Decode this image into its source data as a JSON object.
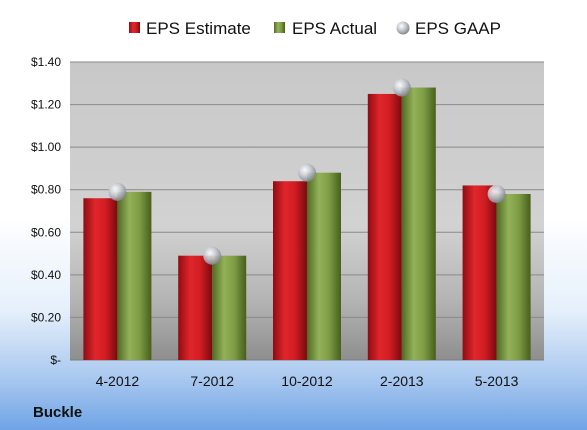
{
  "chart_data": {
    "type": "bar",
    "categories": [
      "4-2012",
      "7-2012",
      "10-2012",
      "2-2013",
      "5-2013"
    ],
    "series": [
      {
        "name": "EPS Estimate",
        "kind": "bar",
        "color": "#c8161d",
        "values": [
          0.76,
          0.49,
          0.84,
          1.25,
          0.82
        ]
      },
      {
        "name": "EPS Actual",
        "kind": "bar",
        "color": "#77933c",
        "values": [
          0.79,
          0.49,
          0.88,
          1.28,
          0.78
        ]
      },
      {
        "name": "EPS GAAP",
        "kind": "marker",
        "color": "#b8bcc4",
        "values": [
          0.79,
          0.49,
          0.88,
          1.28,
          0.78
        ]
      }
    ],
    "ylim": [
      0,
      1.4
    ],
    "yticks": [
      {
        "value": 0,
        "label": "$-"
      },
      {
        "value": 0.2,
        "label": "$0.20"
      },
      {
        "value": 0.4,
        "label": "$0.40"
      },
      {
        "value": 0.6,
        "label": "$0.60"
      },
      {
        "value": 0.8,
        "label": "$0.80"
      },
      {
        "value": 1.0,
        "label": "$1.00"
      },
      {
        "value": 1.2,
        "label": "$1.20"
      },
      {
        "value": 1.4,
        "label": "$1.40"
      }
    ],
    "grid": true,
    "legend": "top"
  },
  "company": "Buckle"
}
